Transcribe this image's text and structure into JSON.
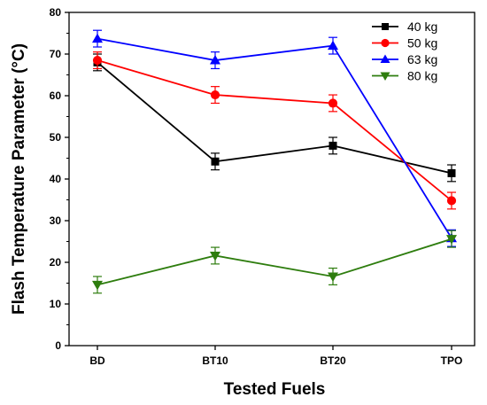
{
  "chart_data": {
    "type": "line",
    "xlabel": "Tested Fuels",
    "ylabel": "Flash Temperature Parameter (°C)",
    "categories": [
      "BD",
      "BT10",
      "BT20",
      "TPO"
    ],
    "ylim": [
      0,
      80
    ],
    "yticks": [
      0,
      10,
      20,
      30,
      40,
      50,
      60,
      70,
      80
    ],
    "grid": false,
    "legend_position": "top-right",
    "series": [
      {
        "name": "40 kg",
        "color": "#000000",
        "marker": "square",
        "values": [
          68.0,
          44.2,
          48.0,
          41.4
        ],
        "errors": [
          2.0,
          2.0,
          2.0,
          2.0
        ]
      },
      {
        "name": "50 kg",
        "color": "#ff0000",
        "marker": "circle",
        "values": [
          68.5,
          60.2,
          58.2,
          34.8
        ],
        "errors": [
          2.0,
          2.0,
          2.0,
          2.0
        ]
      },
      {
        "name": "63 kg",
        "color": "#0000ff",
        "marker": "triangle-up",
        "values": [
          73.7,
          68.5,
          72.0,
          25.8
        ],
        "errors": [
          2.0,
          2.0,
          2.0,
          2.0
        ]
      },
      {
        "name": "80 kg",
        "color": "#2e7d0e",
        "marker": "triangle-down",
        "values": [
          14.6,
          21.6,
          16.6,
          25.6
        ],
        "errors": [
          2.0,
          2.0,
          2.0,
          2.0
        ]
      }
    ]
  }
}
